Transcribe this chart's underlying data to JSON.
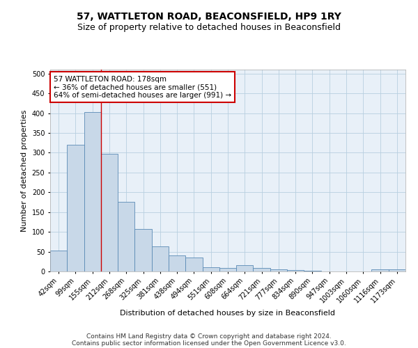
{
  "title": "57, WATTLETON ROAD, BEACONSFIELD, HP9 1RY",
  "subtitle": "Size of property relative to detached houses in Beaconsfield",
  "xlabel": "Distribution of detached houses by size in Beaconsfield",
  "ylabel": "Number of detached properties",
  "footer_line1": "Contains HM Land Registry data © Crown copyright and database right 2024.",
  "footer_line2": "Contains public sector information licensed under the Open Government Licence v3.0.",
  "categories": [
    "42sqm",
    "99sqm",
    "155sqm",
    "212sqm",
    "268sqm",
    "325sqm",
    "381sqm",
    "438sqm",
    "494sqm",
    "551sqm",
    "608sqm",
    "664sqm",
    "721sqm",
    "777sqm",
    "834sqm",
    "890sqm",
    "947sqm",
    "1003sqm",
    "1060sqm",
    "1116sqm",
    "1173sqm"
  ],
  "values": [
    53,
    320,
    402,
    297,
    176,
    107,
    63,
    40,
    36,
    10,
    9,
    15,
    9,
    6,
    3,
    1,
    0,
    0,
    0,
    5,
    5
  ],
  "bar_color": "#c8d8e8",
  "bar_edge_color": "#5a8ab5",
  "vline_x": 2.5,
  "vline_color": "#cc0000",
  "annotation_text": "57 WATTLETON ROAD: 178sqm\n← 36% of detached houses are smaller (551)\n64% of semi-detached houses are larger (991) →",
  "annotation_box_color": "#ffffff",
  "annotation_box_edge": "#cc0000",
  "ylim": [
    0,
    510
  ],
  "yticks": [
    0,
    50,
    100,
    150,
    200,
    250,
    300,
    350,
    400,
    450,
    500
  ],
  "background_color": "#ffffff",
  "grid_color": "#b8cfe0",
  "title_fontsize": 10,
  "subtitle_fontsize": 9,
  "axis_label_fontsize": 8,
  "tick_fontsize": 7,
  "annotation_fontsize": 7.5,
  "footer_fontsize": 6.5
}
